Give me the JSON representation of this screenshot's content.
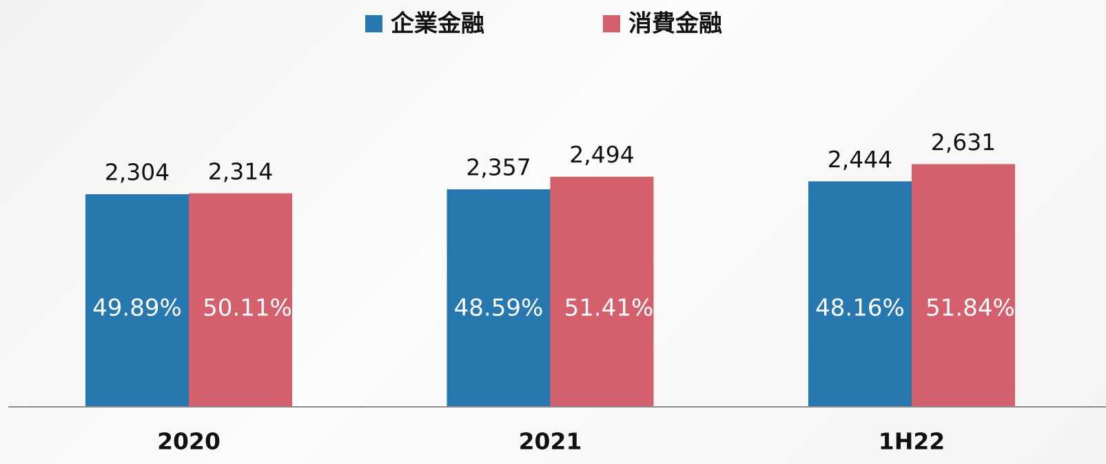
{
  "chart_data": {
    "type": "bar",
    "categories": [
      "2020",
      "2021",
      "1H22"
    ],
    "series": [
      {
        "name": "企業金融",
        "color": "#2878b0",
        "values": [
          2304,
          2357,
          2444
        ],
        "value_labels": [
          "2,304",
          "2,357",
          "2,444"
        ],
        "percentages": [
          49.89,
          48.59,
          48.16
        ],
        "percentage_labels": [
          "49.89%",
          "48.59%",
          "48.16%"
        ]
      },
      {
        "name": "消費金融",
        "color": "#d4606e",
        "values": [
          2314,
          2494,
          2631
        ],
        "value_labels": [
          "2,314",
          "2,494",
          "2,631"
        ],
        "percentages": [
          50.11,
          51.41,
          51.84
        ],
        "percentage_labels": [
          "50.11%",
          "51.41%",
          "51.84%"
        ]
      }
    ],
    "ylim": [
      0,
      4400
    ]
  }
}
